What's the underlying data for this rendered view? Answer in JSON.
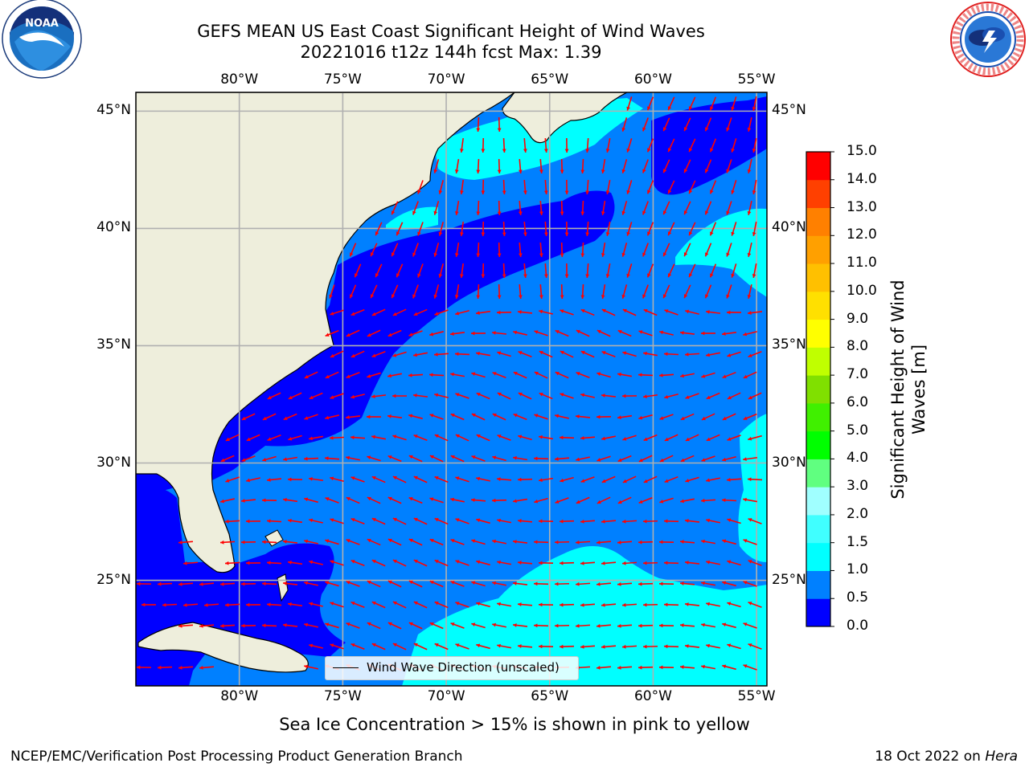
{
  "title": {
    "line1": "GEFS MEAN US East Coast Significant Height of Wind Waves",
    "line2": "20221016 t12z 144h fcst   Max: 1.39"
  },
  "logos": {
    "left": {
      "text": "NOAA",
      "ring_text": "NATIONAL OCEANIC AND ATMOSPHERIC ADMINISTRATION · U.S. DEPARTMENT OF COMMERCE"
    },
    "right": {
      "ring_text": "NATIONAL WEATHER SERVICE"
    }
  },
  "map": {
    "lon_ticks": [
      "80°W",
      "75°W",
      "70°W",
      "65°W",
      "60°W",
      "55°W"
    ],
    "lat_ticks": [
      "45°N",
      "40°N",
      "35°N",
      "30°N",
      "25°N"
    ],
    "lon_values": [
      -80,
      -75,
      -70,
      -65,
      -60,
      -55
    ],
    "lat_values": [
      45,
      40,
      35,
      30,
      25
    ],
    "extent": {
      "lon_min": -85,
      "lon_max": -54.5,
      "lat_min": 20.5,
      "lat_max": 45.8
    },
    "colors": {
      "land": "#eeeedc",
      "grid": "#b0b0b0",
      "arrow": "#ff0000",
      "coast": "#000000"
    },
    "legend_label": "Wind Wave Direction (unscaled)"
  },
  "colorbar": {
    "label": "Significant Height of Wind Waves [m]",
    "label_lines": [
      "Significant Height of Wind",
      "Waves [m]"
    ],
    "ticks": [
      "0.0",
      "0.5",
      "1.0",
      "1.5",
      "2.0",
      "3.0",
      "4.0",
      "5.0",
      "6.0",
      "7.0",
      "8.0",
      "9.0",
      "10.0",
      "11.0",
      "12.0",
      "13.0",
      "14.0",
      "15.0"
    ],
    "colors": [
      "#0000ff",
      "#0080ff",
      "#00ffff",
      "#40ffff",
      "#a0ffff",
      "#60ff80",
      "#00ff00",
      "#40f000",
      "#80e000",
      "#c0ff00",
      "#ffff00",
      "#ffe000",
      "#ffc000",
      "#ffa000",
      "#ff8000",
      "#ff4000",
      "#ff0000"
    ]
  },
  "caption": "Sea Ice Concentration > 15% is shown in pink to yellow",
  "footer": {
    "left": "NCEP/EMC/Verification Post Processing Product Generation Branch",
    "right_date": "18 Oct 2022 on ",
    "right_host": "Hera"
  }
}
